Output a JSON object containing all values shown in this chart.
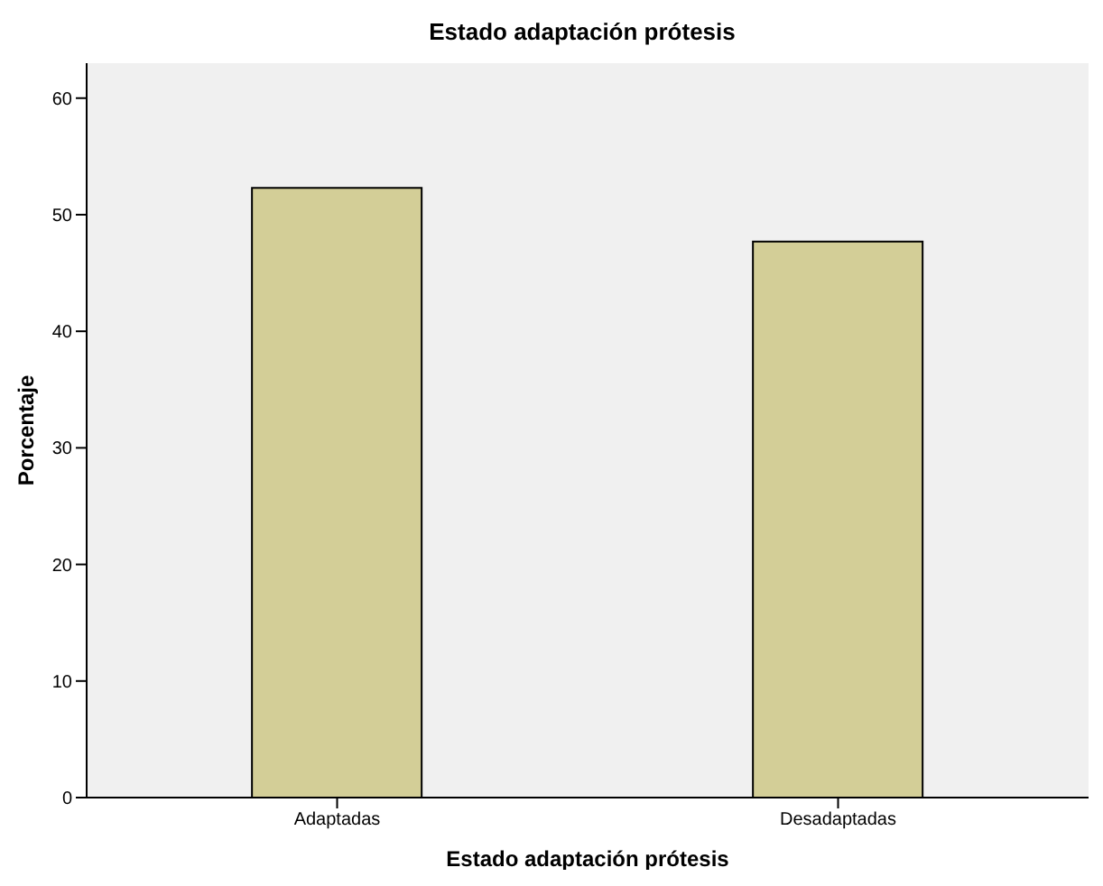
{
  "chart_data": {
    "type": "bar",
    "title": "Estado adaptación prótesis",
    "xlabel": "Estado adaptación prótesis",
    "ylabel": "Porcentaje",
    "categories": [
      "Adaptadas",
      "Desadaptadas"
    ],
    "values": [
      52.3,
      47.7
    ],
    "color": "#d3ce97",
    "ylim": [
      0,
      63
    ],
    "yticks": [
      0,
      10,
      20,
      30,
      40,
      50,
      60
    ]
  }
}
